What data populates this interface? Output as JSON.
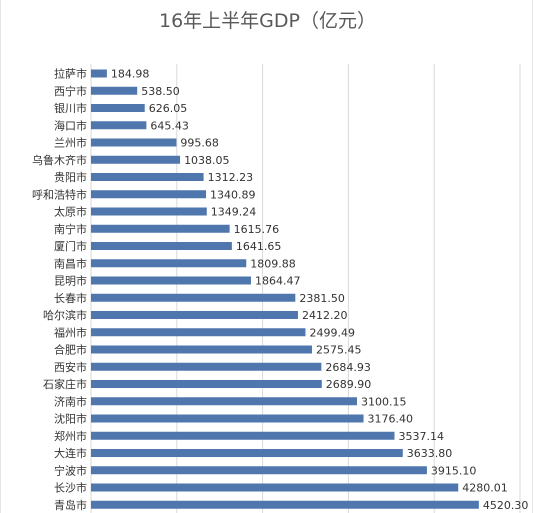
{
  "chart_data": {
    "type": "bar",
    "orientation": "horizontal",
    "title": "16年上半年GDP（亿元）",
    "categories": [
      "拉萨市",
      "西宁市",
      "银川市",
      "海口市",
      "兰州市",
      "乌鲁木齐市",
      "贵阳市",
      "呼和浩特市",
      "太原市",
      "南宁市",
      "厦门市",
      "南昌市",
      "昆明市",
      "长春市",
      "哈尔滨市",
      "福州市",
      "合肥市",
      "西安市",
      "石家庄市",
      "济南市",
      "沈阳市",
      "郑州市",
      "大连市",
      "宁波市",
      "长沙市",
      "青岛市"
    ],
    "values": [
      184.98,
      538.5,
      626.05,
      645.43,
      995.68,
      1038.05,
      1312.23,
      1340.89,
      1349.24,
      1615.76,
      1641.65,
      1809.88,
      1864.47,
      2381.5,
      2412.2,
      2499.49,
      2575.45,
      2684.93,
      2689.9,
      3100.15,
      3176.4,
      3537.14,
      3633.8,
      3915.1,
      4280.01,
      4520.3
    ],
    "value_labels": [
      "184.98",
      "538.50",
      "626.05",
      "645.43",
      "995.68",
      "1038.05",
      "1312.23",
      "1340.89",
      "1349.24",
      "1615.76",
      "1641.65",
      "1809.88",
      "1864.47",
      "2381.50",
      "2412.20",
      "2499.49",
      "2575.45",
      "2684.93",
      "2689.90",
      "3100.15",
      "3176.40",
      "3537.14",
      "3633.80",
      "3915.10",
      "4280.01",
      "4520.30"
    ],
    "xlim": [
      0,
      5000
    ],
    "grid": true,
    "bar_color": "#4f76ad"
  }
}
